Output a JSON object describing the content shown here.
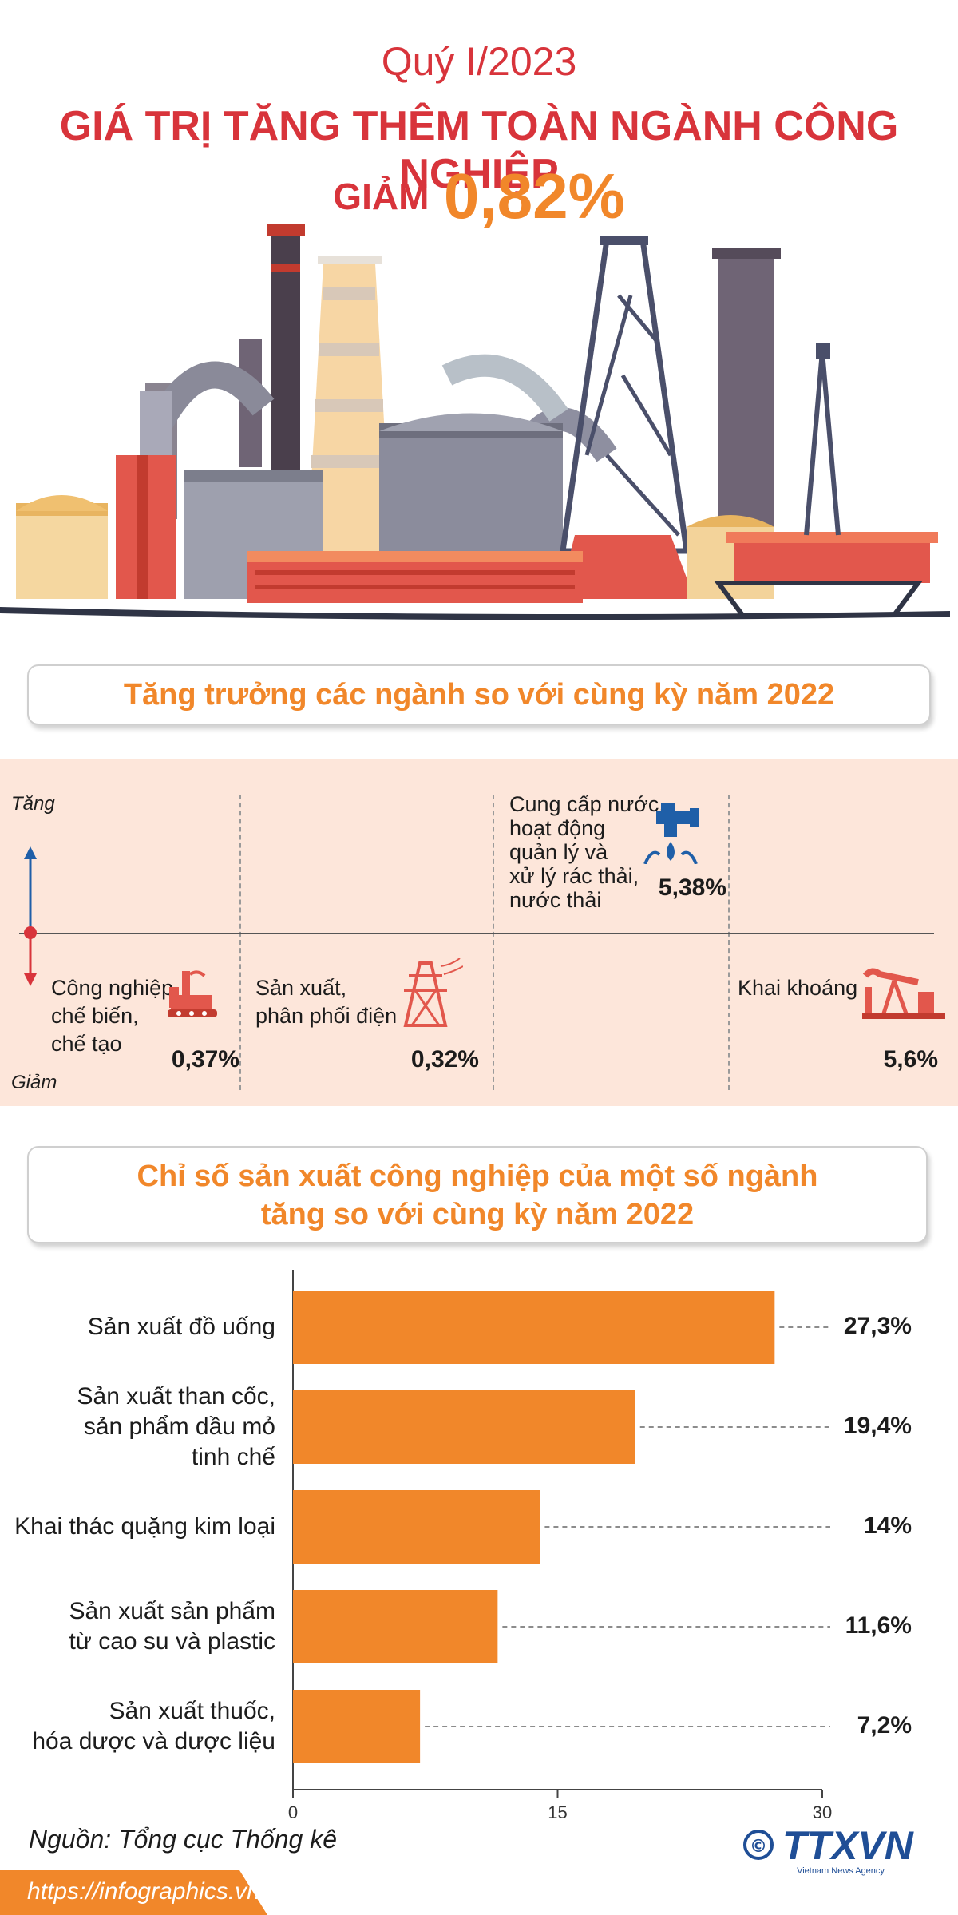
{
  "header": {
    "subtitle": "Quý I/2023",
    "title": "GIÁ TRỊ TĂNG THÊM TOÀN NGÀNH CÔNG NGHIỆP",
    "decline_label": "GIẢM",
    "decline_value": "0,82%"
  },
  "colors": {
    "title_red": "#d8343b",
    "accent_orange": "#f1872a",
    "band_bg": "#fde6da",
    "arrow_blue": "#1f5fa8"
  },
  "growth_section": {
    "heading": "Tăng trưởng các ngành so với cùng kỳ năm 2022",
    "up_label": "Tăng",
    "down_label": "Giảm",
    "industries": [
      {
        "label": "Công nghiệp chế biến, chế tạo",
        "label_lines": [
          "Công nghiệp",
          "chế biến,",
          "chế tạo"
        ],
        "value": "0,37%",
        "direction": "down",
        "icon": "factory-icon"
      },
      {
        "label": "Sản xuất, phân phối điện",
        "label_lines": [
          "Sản xuất,",
          "phân phối điện"
        ],
        "value": "0,32%",
        "direction": "down",
        "icon": "power-tower-icon"
      },
      {
        "label": "Cung cấp nước, hoạt động quản lý và xử lý rác thải, nước thải",
        "label_lines": [
          "Cung cấp nước,",
          "hoạt động",
          "quản lý và",
          "xử lý rác thải,",
          "nước thải"
        ],
        "value": "5,38%",
        "direction": "up",
        "icon": "water-tap-icon"
      },
      {
        "label": "Khai khoáng",
        "label_lines": [
          "Khai khoáng"
        ],
        "value": "5,6%",
        "direction": "down",
        "icon": "oil-pump-icon"
      }
    ]
  },
  "index_section": {
    "heading_line1": "Chỉ số sản xuất công nghiệp của một số ngành",
    "heading_line2": "tăng so với cùng kỳ năm 2022"
  },
  "chart_data": {
    "type": "bar",
    "orientation": "horizontal",
    "categories": [
      "Sản xuất đồ uống",
      "Sản xuất than cốc, sản phẩm dầu mỏ tinh chế",
      "Khai thác quặng kim loại",
      "Sản xuất sản phẩm từ cao su và plastic",
      "Sản xuất thuốc, hóa dược và dược liệu"
    ],
    "category_lines": [
      [
        "Sản xuất đồ uống"
      ],
      [
        "Sản xuất than cốc,",
        "sản phẩm dầu mỏ",
        "tinh chế"
      ],
      [
        "Khai thác quặng kim loại"
      ],
      [
        "Sản xuất sản phẩm",
        "từ cao su và plastic"
      ],
      [
        "Sản xuất thuốc,",
        "hóa dược và dược liệu"
      ]
    ],
    "values": [
      27.3,
      19.4,
      14,
      11.6,
      7.2
    ],
    "value_labels": [
      "27,3%",
      "19,4%",
      "14%",
      "11,6%",
      "7,2%"
    ],
    "xlim": [
      0,
      30
    ],
    "xticks": [
      "0",
      "15",
      "30"
    ],
    "bar_color": "#f1872a"
  },
  "footer": {
    "source": "Nguồn: Tổng cục Thống kê",
    "url": "https://infographics.vn",
    "logo_text": "TTXVN",
    "logo_sub": "Vietnam News Agency",
    "copyright": "©"
  }
}
